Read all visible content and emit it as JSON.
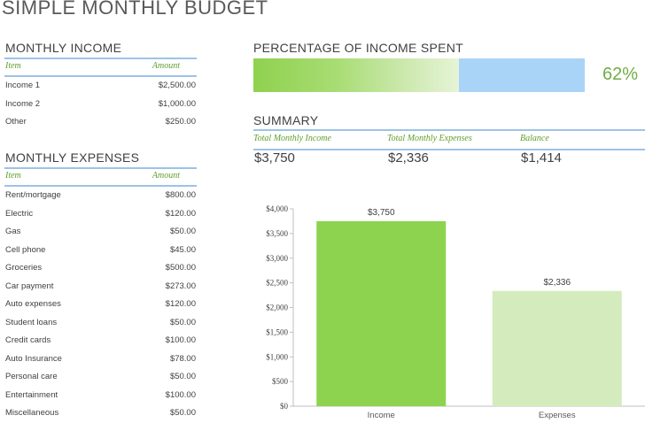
{
  "title": "SIMPLE MONTHLY BUDGET",
  "income": {
    "heading": "MONTHLY INCOME",
    "col_item": "Item",
    "col_amount": "Amount",
    "rows": [
      {
        "item": "Income 1",
        "amount": "$2,500.00"
      },
      {
        "item": "Income 2",
        "amount": "$1,000.00"
      },
      {
        "item": "Other",
        "amount": "$250.00"
      }
    ]
  },
  "expenses": {
    "heading": "MONTHLY EXPENSES",
    "col_item": "Item",
    "col_amount": "Amount",
    "rows": [
      {
        "item": "Rent/mortgage",
        "amount": "$800.00"
      },
      {
        "item": "Electric",
        "amount": "$120.00"
      },
      {
        "item": "Gas",
        "amount": "$50.00"
      },
      {
        "item": "Cell phone",
        "amount": "$45.00"
      },
      {
        "item": "Groceries",
        "amount": "$500.00"
      },
      {
        "item": "Car payment",
        "amount": "$273.00"
      },
      {
        "item": "Auto expenses",
        "amount": "$120.00"
      },
      {
        "item": "Student loans",
        "amount": "$50.00"
      },
      {
        "item": "Credit cards",
        "amount": "$100.00"
      },
      {
        "item": "Auto Insurance",
        "amount": "$78.00"
      },
      {
        "item": "Personal care",
        "amount": "$50.00"
      },
      {
        "item": "Entertainment",
        "amount": "$100.00"
      },
      {
        "item": "Miscellaneous",
        "amount": "$50.00"
      }
    ]
  },
  "percentage": {
    "heading": "PERCENTAGE OF INCOME SPENT",
    "value_label": "62%",
    "fraction": 0.62
  },
  "summary": {
    "heading": "SUMMARY",
    "total_income_label": "Total Monthly Income",
    "total_expenses_label": "Total Monthly Expenses",
    "balance_label": "Balance",
    "total_income": "$3,750",
    "total_expenses": "$2,336",
    "balance": "$1,414"
  },
  "colors": {
    "accent_green": "#70ad47",
    "income_bar": "#8ed34f",
    "expenses_bar": "#d4ecbd",
    "rule_blue": "#9dc3e6",
    "remaining_blue": "#a9d4f7"
  },
  "chart_data": {
    "type": "bar",
    "categories": [
      "Income",
      "Expenses"
    ],
    "values": [
      3750,
      2336
    ],
    "data_labels": [
      "$3,750",
      "$2,336"
    ],
    "yticks": [
      0,
      500,
      1000,
      1500,
      2000,
      2500,
      3000,
      3500,
      4000
    ],
    "ytick_labels": [
      "$0",
      "$500",
      "$1,000",
      "$1,500",
      "$2,000",
      "$2,500",
      "$3,000",
      "$3,500",
      "$4,000"
    ],
    "ylim": [
      0,
      4000
    ],
    "title": "",
    "xlabel": "",
    "ylabel": "",
    "grid": false,
    "legend": false
  }
}
